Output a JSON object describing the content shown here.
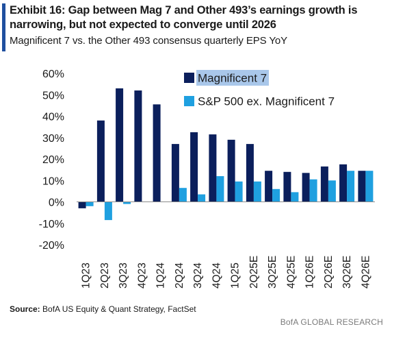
{
  "header": {
    "title": "Exhibit 16: Gap between Mag 7 and Other 493’s earnings growth is narrowing, but not expected to converge until 2026",
    "subtitle": "Magnificent 7 vs. the Other 493 consensus quarterly EPS YoY"
  },
  "footer": {
    "source_label": "Source:",
    "source_text": " BofA US Equity & Quant Strategy, FactSet",
    "brand": "BofA GLOBAL RESEARCH"
  },
  "colors": {
    "accent": "#1f4f9f",
    "series_1": "#0b1f5c",
    "series_2": "#1fa0e0",
    "legend_highlight": "#a9c7ea"
  },
  "chart_data": {
    "type": "bar",
    "categories": [
      "1Q23",
      "2Q23",
      "3Q23",
      "4Q23",
      "1Q24",
      "2Q24",
      "3Q24",
      "4Q24",
      "1Q25",
      "2Q25E",
      "3Q25E",
      "4Q25E",
      "1Q26E",
      "2Q26E",
      "3Q26E",
      "4Q26E"
    ],
    "series": [
      {
        "name": "Magnificent 7",
        "values": [
          -3,
          38,
          53,
          52,
          45.5,
          27,
          32.5,
          31.5,
          29,
          27,
          14.5,
          14,
          13.5,
          16.5,
          17.5,
          14.5
        ]
      },
      {
        "name": "S&P 500 ex. Magnificent 7",
        "values": [
          -2,
          -8.5,
          -1,
          0,
          0,
          6.5,
          3.5,
          12,
          9.5,
          9.5,
          6,
          4.5,
          10.5,
          10,
          14.5,
          14.5
        ]
      }
    ],
    "y_ticks": [
      "60%",
      "50%",
      "40%",
      "30%",
      "20%",
      "10%",
      "0%",
      "-10%",
      "-20%"
    ],
    "ylim": [
      -20,
      60
    ],
    "xlabel": "",
    "ylabel": "",
    "legend_position": "top-right",
    "grid": false
  }
}
